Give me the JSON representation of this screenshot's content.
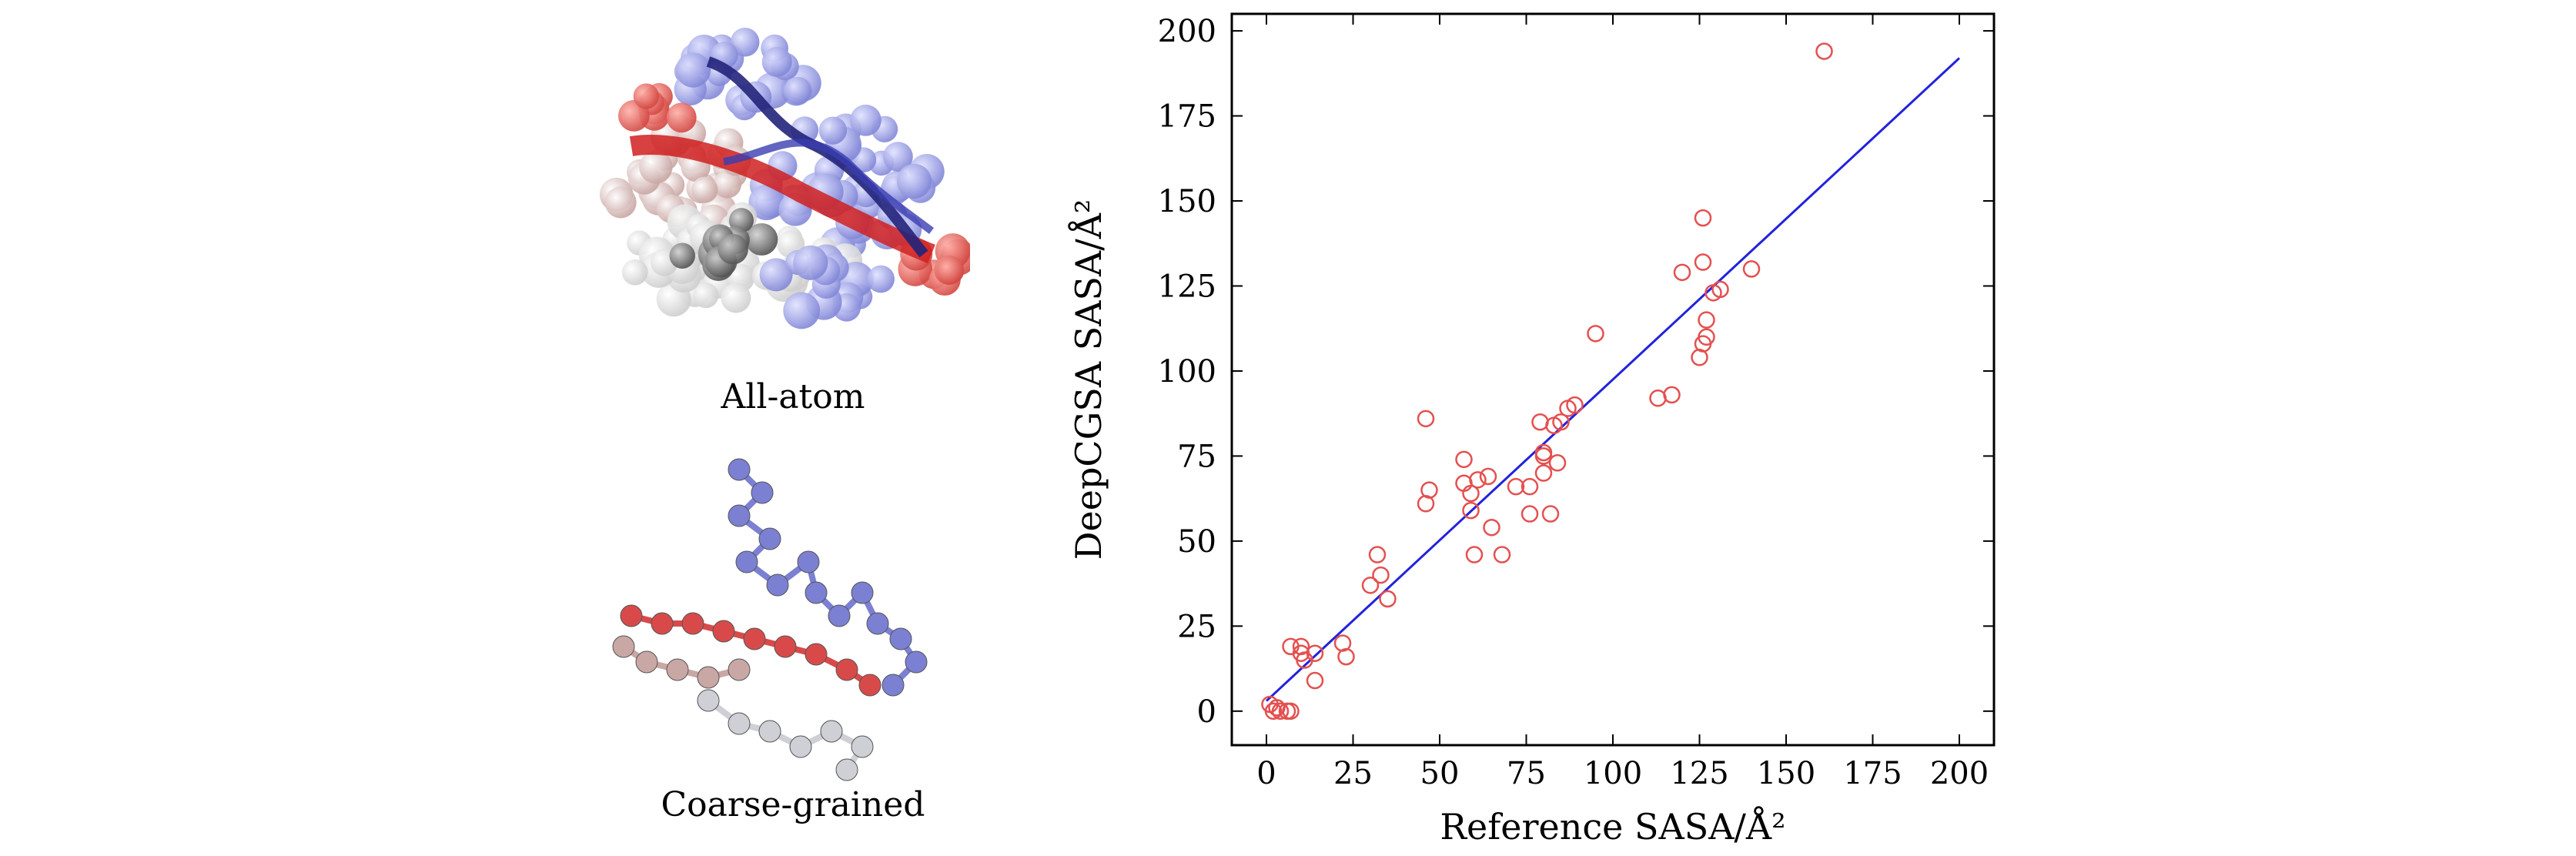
{
  "panels": {
    "all_atom_label": "All-atom",
    "coarse_grained_label": "Coarse-grained"
  },
  "colors": {
    "points": "#e45050",
    "fit_line": "#2222dd",
    "mol_red": "#d84a4a",
    "mol_blue": "#7b80d2",
    "mol_white": "#e8e8e8"
  },
  "chart_data": {
    "type": "scatter",
    "title": "",
    "xlabel": "Reference SASA/Å²",
    "ylabel": "DeepCGSA SASA/Å²",
    "xlim": [
      -10,
      210
    ],
    "ylim": [
      -10,
      205
    ],
    "xticks": [
      0,
      25,
      50,
      75,
      100,
      125,
      150,
      175,
      200
    ],
    "yticks": [
      0,
      25,
      50,
      75,
      100,
      125,
      150,
      175,
      200
    ],
    "grid": false,
    "legend": "none",
    "series": [
      {
        "marker": "open-circle",
        "points": [
          [
            161,
            194
          ],
          [
            126,
            145
          ],
          [
            126,
            132
          ],
          [
            120,
            129
          ],
          [
            140,
            130
          ],
          [
            131,
            124
          ],
          [
            129,
            123
          ],
          [
            127,
            115
          ],
          [
            127,
            110
          ],
          [
            126,
            108
          ],
          [
            125,
            104
          ],
          [
            95,
            111
          ],
          [
            117,
            93
          ],
          [
            113,
            92
          ],
          [
            89,
            90
          ],
          [
            87,
            89
          ],
          [
            85,
            85
          ],
          [
            83,
            84
          ],
          [
            79,
            85
          ],
          [
            80,
            76
          ],
          [
            80,
            75
          ],
          [
            84,
            73
          ],
          [
            80,
            70
          ],
          [
            76,
            66
          ],
          [
            72,
            66
          ],
          [
            64,
            69
          ],
          [
            61,
            68
          ],
          [
            57,
            74
          ],
          [
            57,
            67
          ],
          [
            59,
            64
          ],
          [
            46,
            86
          ],
          [
            47,
            65
          ],
          [
            46,
            61
          ],
          [
            59,
            59
          ],
          [
            65,
            54
          ],
          [
            76,
            58
          ],
          [
            82,
            58
          ],
          [
            68,
            46
          ],
          [
            60,
            46
          ],
          [
            32,
            46
          ],
          [
            33,
            40
          ],
          [
            30,
            37
          ],
          [
            35,
            33
          ],
          [
            22,
            20
          ],
          [
            23,
            16
          ],
          [
            14,
            17
          ],
          [
            14,
            9
          ],
          [
            7,
            19
          ],
          [
            10,
            19
          ],
          [
            10,
            17
          ],
          [
            11,
            15
          ],
          [
            1,
            2
          ],
          [
            2,
            0
          ],
          [
            3,
            1
          ],
          [
            4,
            0
          ],
          [
            6,
            0
          ],
          [
            7,
            0
          ]
        ]
      },
      {
        "type": "line",
        "points": [
          [
            0,
            3
          ],
          [
            200,
            192
          ]
        ]
      }
    ]
  }
}
